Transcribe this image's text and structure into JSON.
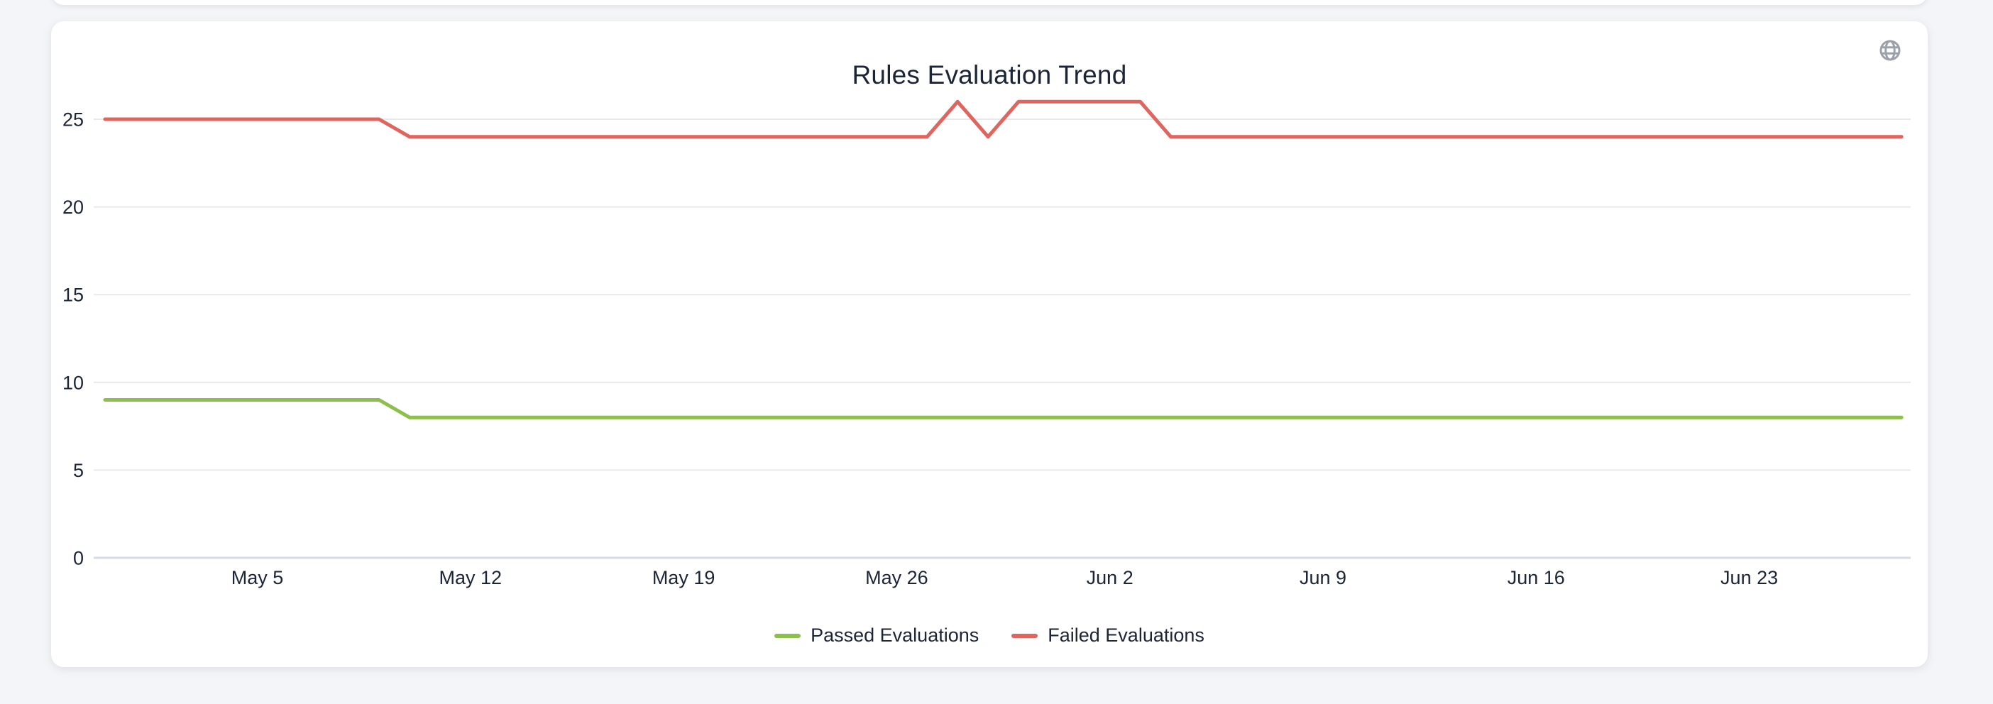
{
  "window": {
    "background_color": "#f4f5f8"
  },
  "card": {
    "background_color": "#ffffff"
  },
  "colors": {
    "grid": "#e9e9e9",
    "axis_line": "#d5dbe6",
    "text": "#1b2536",
    "icon": "#9ba1ab",
    "passed": "#8cbf4b",
    "failed": "#e0655f"
  },
  "header": {
    "globe_icon": "globe-icon"
  },
  "chart_data": {
    "type": "line",
    "title": "Rules Evaluation Trend",
    "xlabel": "",
    "ylabel": "",
    "ylim": [
      0,
      27
    ],
    "grid": "horizontal",
    "legend_position": "bottom",
    "y_ticks": [
      0,
      5,
      10,
      15,
      20,
      25
    ],
    "x_ticks": [
      "May 5",
      "May 12",
      "May 19",
      "May 26",
      "Jun 2",
      "Jun 9",
      "Jun 16",
      "Jun 23"
    ],
    "x": [
      "Apr 30",
      "May 1",
      "May 2",
      "May 3",
      "May 4",
      "May 5",
      "May 6",
      "May 7",
      "May 8",
      "May 9",
      "May 10",
      "May 11",
      "May 12",
      "May 13",
      "May 14",
      "May 15",
      "May 16",
      "May 17",
      "May 18",
      "May 19",
      "May 20",
      "May 21",
      "May 22",
      "May 23",
      "May 24",
      "May 25",
      "May 26",
      "May 27",
      "May 28",
      "May 29",
      "May 30",
      "May 31",
      "Jun 1",
      "Jun 2",
      "Jun 3",
      "Jun 4",
      "Jun 5",
      "Jun 6",
      "Jun 7",
      "Jun 8",
      "Jun 9",
      "Jun 10",
      "Jun 11",
      "Jun 12",
      "Jun 13",
      "Jun 14",
      "Jun 15",
      "Jun 16",
      "Jun 17",
      "Jun 18",
      "Jun 19",
      "Jun 20",
      "Jun 21",
      "Jun 22",
      "Jun 23",
      "Jun 24",
      "Jun 25",
      "Jun 26",
      "Jun 27",
      "Jun 28"
    ],
    "series": [
      {
        "name": "Passed Evaluations",
        "color": "#8cbf4b",
        "values": [
          9,
          9,
          9,
          9,
          9,
          9,
          9,
          9,
          9,
          9,
          8,
          8,
          8,
          8,
          8,
          8,
          8,
          8,
          8,
          8,
          8,
          8,
          8,
          8,
          8,
          8,
          8,
          8,
          8,
          8,
          8,
          8,
          8,
          8,
          8,
          8,
          8,
          8,
          8,
          8,
          8,
          8,
          8,
          8,
          8,
          8,
          8,
          8,
          8,
          8,
          8,
          8,
          8,
          8,
          8,
          8,
          8,
          8,
          8,
          8
        ]
      },
      {
        "name": "Failed Evaluations",
        "color": "#e0655f",
        "values": [
          25,
          25,
          25,
          25,
          25,
          25,
          25,
          25,
          25,
          25,
          24,
          24,
          24,
          24,
          24,
          24,
          24,
          24,
          24,
          24,
          24,
          24,
          24,
          24,
          24,
          24,
          24,
          24,
          26,
          24,
          26,
          26,
          26,
          26,
          26,
          24,
          24,
          24,
          24,
          24,
          24,
          24,
          24,
          24,
          24,
          24,
          24,
          24,
          24,
          24,
          24,
          24,
          24,
          24,
          24,
          24,
          24,
          24,
          24,
          24
        ]
      }
    ]
  }
}
